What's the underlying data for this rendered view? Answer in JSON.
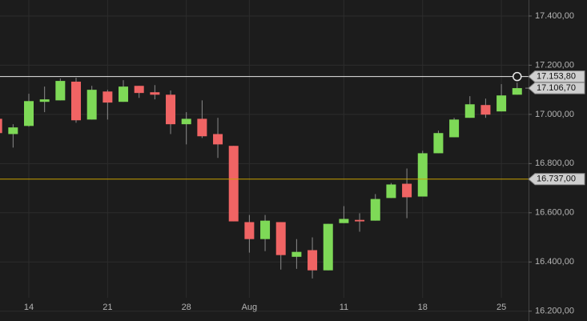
{
  "chart_data": {
    "type": "candlestick",
    "categories": [
      null,
      null,
      "14",
      null,
      null,
      null,
      null,
      "21",
      null,
      null,
      null,
      null,
      "28",
      null,
      null,
      null,
      "Aug",
      null,
      null,
      null,
      null,
      null,
      "11",
      null,
      null,
      null,
      null,
      "18",
      null,
      null,
      null,
      null,
      "25",
      null
    ],
    "open": [
      16982,
      16920,
      16953,
      17051,
      17057,
      17133,
      16979,
      17093,
      17051,
      17116,
      17090,
      17080,
      16960,
      16982,
      16920,
      16872,
      16562,
      16493,
      16562,
      16421,
      16448,
      16366,
      16558,
      16571,
      16568,
      16660,
      16718,
      16666,
      16842,
      16907,
      16986,
      17038,
      17012,
      17080
    ],
    "high": [
      16992,
      16960,
      17084,
      17113,
      17146,
      17149,
      17116,
      17100,
      17139,
      17116,
      17119,
      17097,
      17009,
      17057,
      16986,
      16872,
      16591,
      16591,
      16562,
      16493,
      16500,
      16555,
      16627,
      16598,
      16676,
      16721,
      16780,
      16852,
      16934,
      16986,
      17074,
      17064,
      17123,
      17129
    ],
    "low": [
      16911,
      16865,
      16950,
      17009,
      17057,
      16966,
      16979,
      16979,
      17051,
      17067,
      17061,
      16920,
      16878,
      16904,
      16823,
      16565,
      16438,
      16444,
      16369,
      16372,
      16333,
      16366,
      16558,
      16523,
      16568,
      16660,
      16578,
      16666,
      16842,
      16907,
      16986,
      16986,
      17012,
      17080
    ],
    "close": [
      16924,
      16947,
      17054,
      17061,
      17136,
      16976,
      17100,
      17048,
      17113,
      17087,
      17080,
      16960,
      16982,
      16911,
      16878,
      16565,
      16493,
      16568,
      16428,
      16441,
      16366,
      16555,
      16575,
      16565,
      16656,
      16715,
      16663,
      16842,
      16924,
      16979,
      17041,
      16999,
      17077,
      17106.7
    ],
    "up_color": "#7ed957",
    "down_color": "#f06464",
    "ylim": [
      16160,
      17465
    ],
    "yticks": [
      {
        "value": 16200,
        "label": "16.200,00"
      },
      {
        "value": 16400,
        "label": "16.400,00"
      },
      {
        "value": 16600,
        "label": "16.600,00"
      },
      {
        "value": 16800,
        "label": "16.800,00"
      },
      {
        "value": 17000,
        "label": "17.000,00"
      },
      {
        "value": 17200,
        "label": "17.200,00"
      },
      {
        "value": 17400,
        "label": "17.400,00"
      }
    ],
    "grid": true,
    "price_lines": [
      {
        "value": 17153.8,
        "label": "17.153,80",
        "color": "#e8e8e8"
      },
      {
        "value": 16737,
        "label": "16.737,00",
        "color": "#c8a000"
      }
    ],
    "last_price": {
      "value": 17106.7,
      "label": "17.106,70"
    }
  }
}
